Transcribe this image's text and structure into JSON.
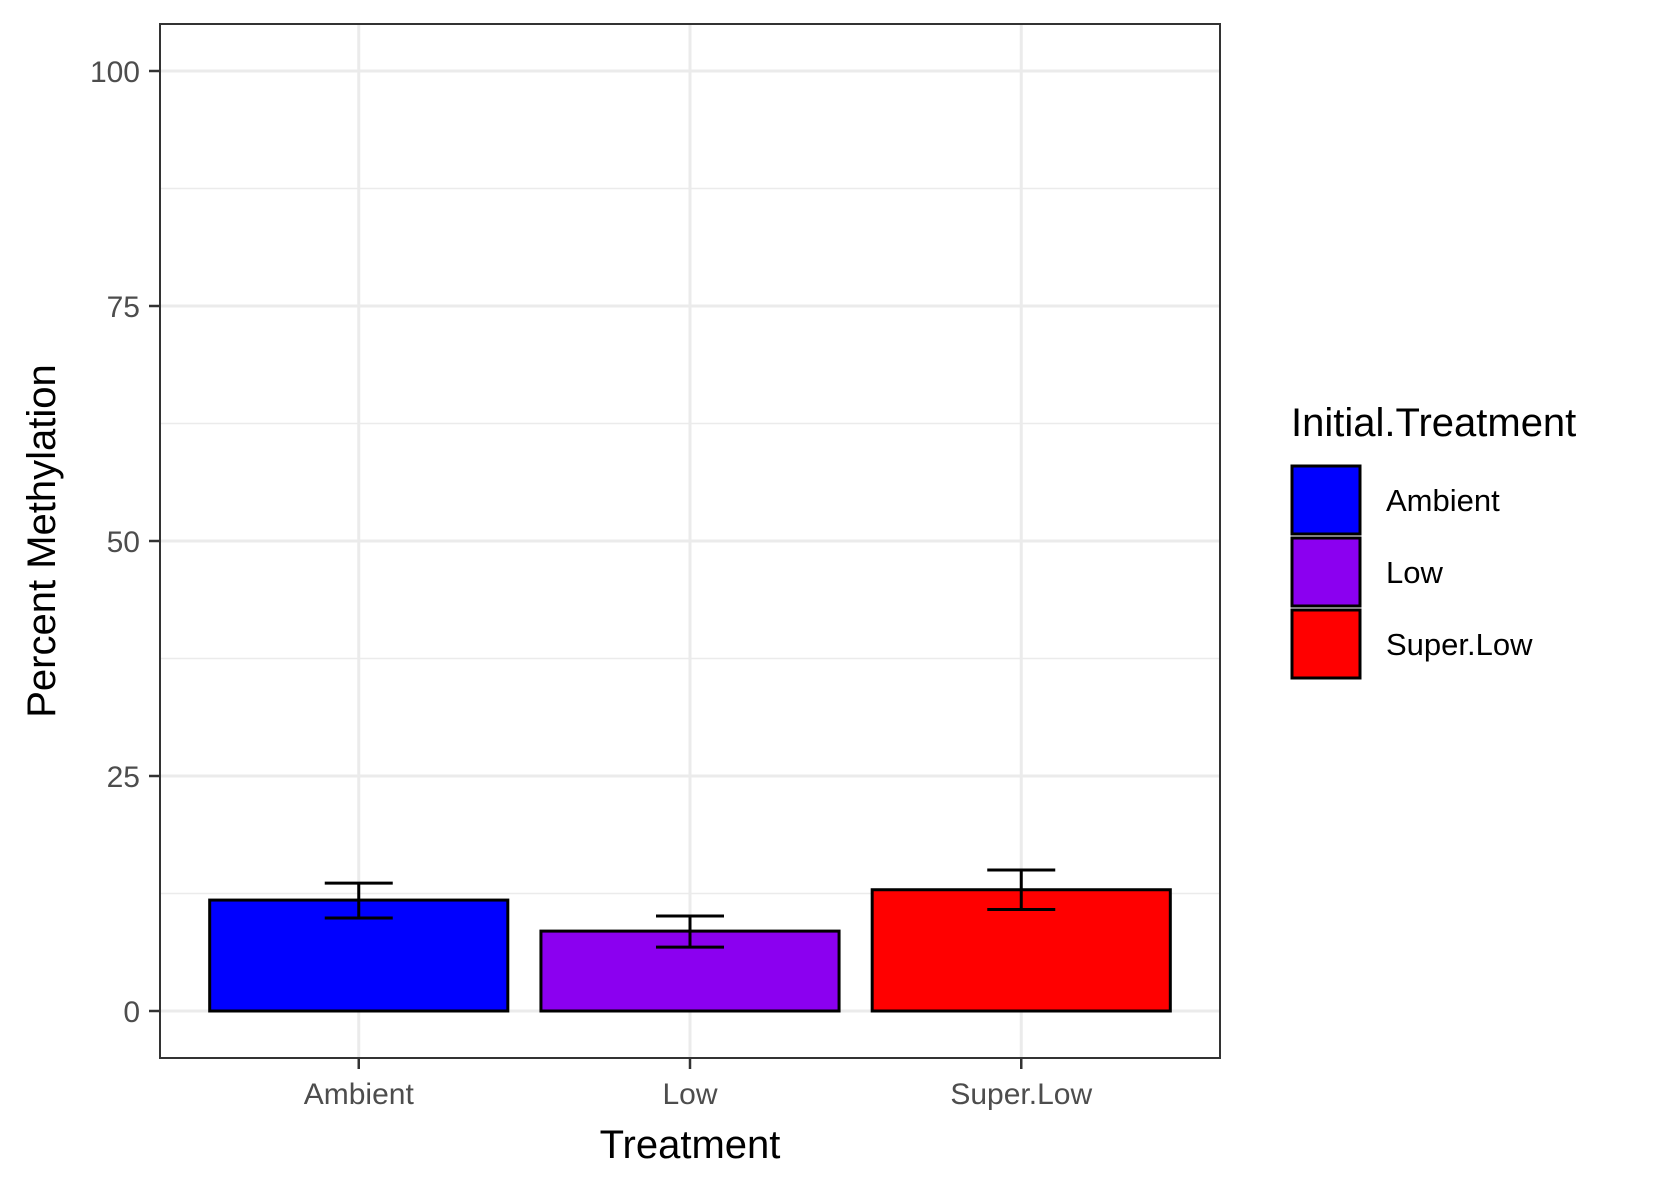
{
  "chart_data": {
    "type": "bar",
    "title": "",
    "xlabel": "Treatment",
    "ylabel": "Percent Methylation",
    "categories": [
      "Ambient",
      "Low",
      "Super.Low"
    ],
    "values": [
      11.8,
      8.5,
      12.9
    ],
    "error_low": [
      9.9,
      6.8,
      10.8
    ],
    "error_high": [
      13.6,
      10.1,
      15.0
    ],
    "ylim": [
      -5,
      105
    ],
    "yticks": [
      0,
      25,
      50,
      75,
      100
    ],
    "yticks_minor": [
      12.5,
      37.5,
      62.5,
      87.5
    ],
    "grid": true,
    "legend": {
      "title": "Initial.Treatment",
      "placement": "right",
      "items": [
        {
          "label": "Ambient",
          "color": "#0000FF"
        },
        {
          "label": "Low",
          "color": "#8B00F0"
        },
        {
          "label": "Super.Low",
          "color": "#FF0000"
        }
      ]
    },
    "colors": [
      "#0000FF",
      "#8B00F0",
      "#FF0000"
    ]
  }
}
